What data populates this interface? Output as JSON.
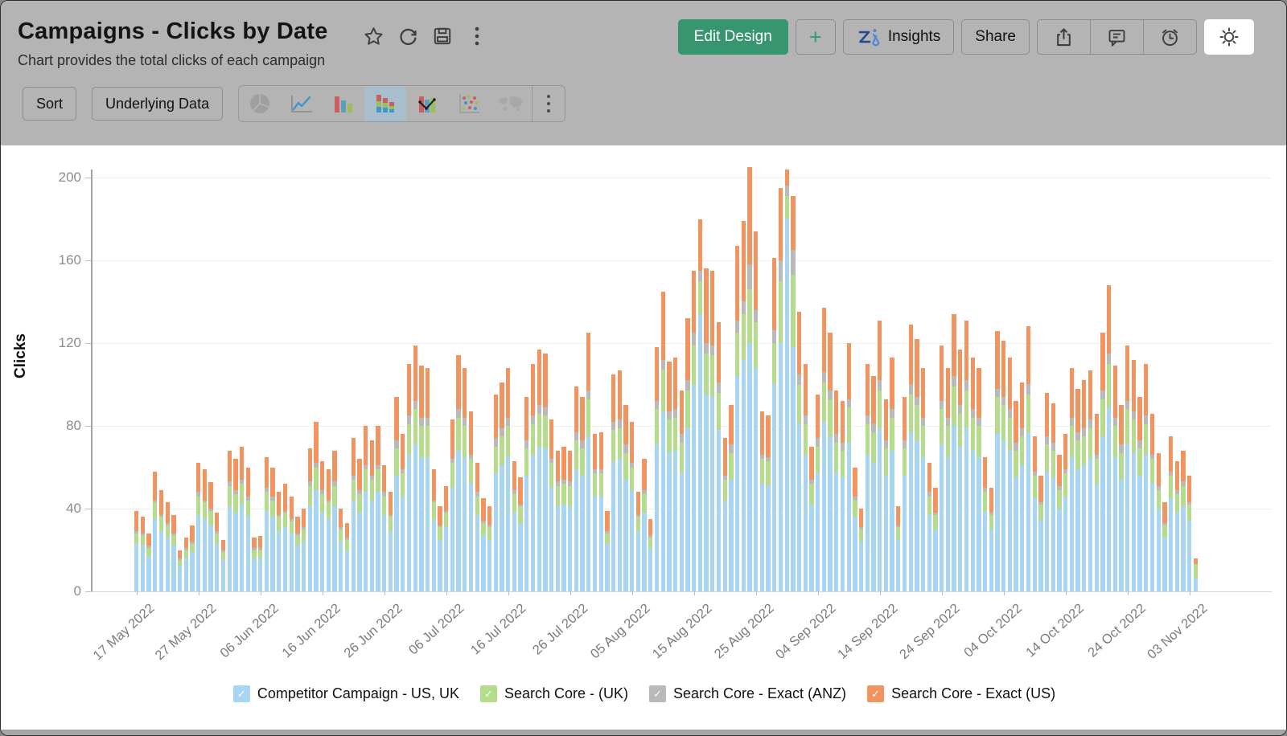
{
  "header": {
    "title": "Campaigns - Clicks by Date",
    "subtitle": "Chart provides the total clicks of each campaign",
    "edit_design_label": "Edit Design",
    "plus_label": "+",
    "insights_label": "Insights",
    "share_label": "Share"
  },
  "toolbar": {
    "sort_label": "Sort",
    "underlying_data_label": "Underlying Data",
    "chart_types": [
      "pie",
      "line",
      "bar",
      "stacked-bar",
      "combo",
      "scatter",
      "map"
    ],
    "selected_chart_type": "stacked-bar"
  },
  "colors": {
    "header_bg": "#b4b4b4",
    "edit_design_green": "#37966F",
    "plus_green": "#2f9d6f",
    "selected_icon_bg": "#a9becc",
    "series_blue": "#A8D5F2",
    "series_green": "#B5DC8C",
    "series_gray": "#B9B9B9",
    "series_orange": "#F2945F"
  },
  "chart_data": {
    "type": "bar",
    "stacked": true,
    "title": "Campaigns - Clicks by Date",
    "xlabel": "",
    "ylabel": "Clicks",
    "ylim": [
      0,
      200
    ],
    "y_ticks": [
      0,
      40,
      80,
      120,
      160,
      200
    ],
    "grid": true,
    "legend_position": "bottom",
    "x_is_daily_dates": true,
    "x_tick_every": 10,
    "x_tick_labels": [
      "17 May 2022",
      "27 May 2022",
      "06 Jun 2022",
      "16 Jun 2022",
      "26 Jun 2022",
      "06 Jul 2022",
      "16 Jul 2022",
      "26 Jul 2022",
      "05 Aug 2022",
      "15 Aug 2022",
      "25 Aug 2022",
      "04 Sep 2022",
      "14 Sep 2022",
      "24 Sep 2022",
      "04 Oct 2022",
      "14 Oct 2022",
      "24 Oct 2022",
      "03 Nov 2022"
    ],
    "series": [
      {
        "name": "Competitor Campaign - US, UK",
        "color": "#A8D5F2",
        "values": [
          23,
          22,
          17,
          35,
          29,
          26,
          22,
          12,
          16,
          19,
          37,
          35,
          32,
          23,
          15,
          41,
          38,
          42,
          36,
          16,
          16,
          39,
          36,
          29,
          31,
          28,
          22,
          24,
          41,
          49,
          38,
          35,
          41,
          24,
          20,
          44,
          38,
          48,
          44,
          48,
          37,
          29,
          56,
          46,
          66,
          71,
          65,
          65,
          35,
          25,
          31,
          50,
          68,
          65,
          52,
          37,
          27,
          25,
          57,
          61,
          65,
          38,
          33,
          56,
          66,
          70,
          69,
          50,
          41,
          42,
          41,
          59,
          56,
          75,
          46,
          46,
          23,
          63,
          64,
          54,
          49,
          29,
          38,
          21,
          71,
          87,
          67,
          68,
          58,
          79,
          100,
          134,
          95,
          94,
          78,
          44,
          54,
          104,
          112,
          120,
          108,
          52,
          51,
          100,
          120,
          180,
          118,
          81,
          66,
          42,
          57,
          82,
          75,
          58,
          55,
          72,
          36,
          24,
          66,
          62,
          79,
          56,
          68,
          25,
          56,
          77,
          73,
          65,
          37,
          30,
          71,
          65,
          80,
          70,
          79,
          68,
          65,
          39,
          30,
          76,
          73,
          68,
          55,
          61,
          77,
          45,
          34,
          58,
          55,
          40,
          46,
          65,
          59,
          61,
          64,
          52,
          75,
          89,
          65,
          54,
          71,
          67,
          56,
          66,
          52,
          40,
          26,
          45,
          38,
          41,
          34,
          6
        ]
      },
      {
        "name": "Search Core - (UK)",
        "color": "#B5DC8C",
        "values": [
          5,
          5,
          4,
          8,
          7,
          6,
          5,
          3,
          4,
          4,
          9,
          8,
          7,
          5,
          4,
          10,
          9,
          10,
          8,
          4,
          4,
          9,
          8,
          7,
          7,
          6,
          5,
          6,
          10,
          11,
          9,
          8,
          10,
          6,
          5,
          10,
          9,
          11,
          10,
          11,
          9,
          7,
          13,
          11,
          15,
          17,
          15,
          15,
          8,
          6,
          7,
          12,
          16,
          15,
          12,
          9,
          6,
          6,
          13,
          14,
          15,
          9,
          8,
          13,
          15,
          16,
          16,
          12,
          10,
          10,
          10,
          14,
          13,
          18,
          11,
          11,
          5,
          15,
          15,
          13,
          11,
          7,
          9,
          5,
          17,
          20,
          16,
          16,
          14,
          18,
          19,
          16,
          20,
          20,
          18,
          10,
          13,
          21,
          22,
          26,
          22,
          12,
          12,
          20,
          30,
          11,
          35,
          19,
          15,
          10,
          13,
          19,
          18,
          14,
          13,
          17,
          8,
          6,
          15,
          15,
          18,
          13,
          16,
          6,
          13,
          18,
          17,
          15,
          9,
          7,
          17,
          15,
          19,
          16,
          18,
          16,
          15,
          9,
          7,
          18,
          17,
          16,
          13,
          14,
          18,
          11,
          8,
          13,
          13,
          9,
          11,
          15,
          14,
          14,
          15,
          12,
          18,
          21,
          15,
          13,
          17,
          16,
          13,
          15,
          12,
          9,
          6,
          11,
          9,
          10,
          8,
          7
        ]
      },
      {
        "name": "Search Core - Exact (ANZ)",
        "color": "#B9B9B9",
        "values": [
          1,
          1,
          1,
          1,
          1,
          1,
          1,
          1,
          1,
          1,
          2,
          1,
          1,
          1,
          1,
          2,
          2,
          2,
          2,
          1,
          1,
          2,
          2,
          1,
          1,
          1,
          1,
          1,
          2,
          2,
          2,
          1,
          2,
          1,
          1,
          2,
          2,
          2,
          2,
          2,
          2,
          1,
          4,
          2,
          4,
          4,
          4,
          4,
          1,
          1,
          1,
          2,
          4,
          4,
          2,
          2,
          1,
          1,
          4,
          4,
          4,
          2,
          1,
          4,
          4,
          4,
          4,
          2,
          2,
          2,
          2,
          4,
          4,
          4,
          2,
          2,
          1,
          4,
          4,
          4,
          2,
          1,
          2,
          1,
          4,
          5,
          4,
          4,
          4,
          5,
          6,
          5,
          5,
          5,
          5,
          2,
          4,
          6,
          6,
          12,
          6,
          2,
          2,
          6,
          10,
          5,
          12,
          5,
          4,
          2,
          4,
          5,
          4,
          4,
          4,
          4,
          2,
          1,
          4,
          4,
          5,
          4,
          4,
          1,
          4,
          5,
          4,
          4,
          2,
          1,
          4,
          4,
          5,
          4,
          5,
          4,
          4,
          2,
          1,
          4,
          4,
          4,
          4,
          4,
          5,
          2,
          1,
          4,
          4,
          2,
          2,
          4,
          4,
          4,
          4,
          2,
          4,
          5,
          4,
          4,
          4,
          4,
          4,
          4,
          2,
          2,
          1,
          2,
          2,
          2,
          1,
          0
        ]
      },
      {
        "name": "Search Core - Exact (US)",
        "color": "#F2945F",
        "values": [
          10,
          8,
          6,
          14,
          12,
          10,
          9,
          4,
          5,
          8,
          14,
          15,
          13,
          9,
          5,
          15,
          15,
          16,
          14,
          5,
          6,
          15,
          14,
          11,
          13,
          11,
          8,
          9,
          16,
          20,
          14,
          15,
          15,
          9,
          7,
          18,
          15,
          19,
          17,
          19,
          13,
          11,
          21,
          17,
          25,
          27,
          25,
          24,
          15,
          9,
          12,
          19,
          26,
          24,
          21,
          14,
          11,
          9,
          21,
          22,
          24,
          14,
          13,
          21,
          25,
          27,
          26,
          19,
          15,
          16,
          15,
          22,
          21,
          28,
          17,
          18,
          10,
          23,
          24,
          19,
          20,
          11,
          15,
          8,
          26,
          33,
          24,
          25,
          21,
          30,
          30,
          25,
          36,
          36,
          29,
          18,
          19,
          36,
          39,
          47,
          38,
          21,
          20,
          35,
          35,
          8,
          26,
          30,
          25,
          16,
          21,
          31,
          28,
          21,
          20,
          27,
          14,
          9,
          25,
          23,
          29,
          20,
          25,
          9,
          21,
          29,
          28,
          24,
          14,
          12,
          27,
          24,
          30,
          27,
          29,
          25,
          24,
          15,
          12,
          28,
          27,
          25,
          20,
          22,
          28,
          17,
          13,
          21,
          19,
          15,
          17,
          24,
          21,
          23,
          24,
          20,
          28,
          33,
          25,
          19,
          27,
          25,
          21,
          25,
          20,
          16,
          10,
          17,
          14,
          15,
          13,
          3
        ]
      }
    ]
  }
}
